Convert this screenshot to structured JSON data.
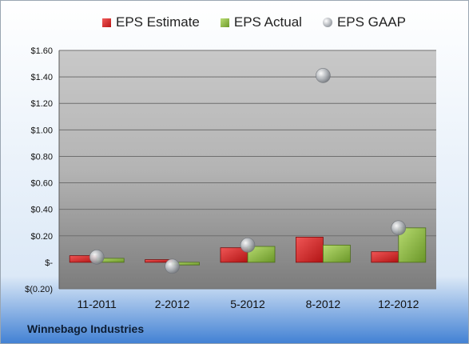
{
  "company": "Winnebago Industries",
  "chart_data": {
    "type": "bar",
    "categories": [
      "11-2011",
      "2-2012",
      "5-2012",
      "8-2012",
      "12-2012"
    ],
    "series": [
      {
        "name": "EPS Estimate",
        "kind": "bar",
        "color": "#c8201e",
        "values": [
          0.05,
          0.02,
          0.11,
          0.19,
          0.08
        ]
      },
      {
        "name": "EPS Actual",
        "kind": "bar",
        "color": "#8cb33c",
        "values": [
          0.03,
          -0.02,
          0.12,
          0.13,
          0.26
        ]
      },
      {
        "name": "EPS GAAP",
        "kind": "scatter",
        "color": "#a0a4aa",
        "values": [
          0.04,
          -0.03,
          0.13,
          1.41,
          0.26
        ]
      }
    ],
    "y_ticks": [
      -0.2,
      0,
      0.2,
      0.4,
      0.6,
      0.8,
      1.0,
      1.2,
      1.4,
      1.6
    ],
    "y_tick_labels": [
      "$(0.20)",
      "$-",
      "$0.20",
      "$0.40",
      "$0.60",
      "$0.80",
      "$1.00",
      "$1.20",
      "$1.40",
      "$1.60"
    ],
    "ylim": [
      -0.2,
      1.6
    ],
    "grid": true,
    "legend_position": "top"
  }
}
